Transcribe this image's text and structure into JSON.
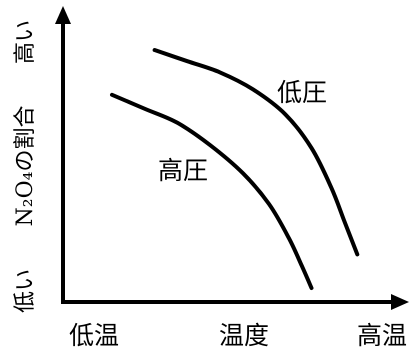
{
  "chart_data": {
    "type": "line",
    "title": "",
    "xlabel": "温度",
    "ylabel": "N₂O₄の割合",
    "x_low_label": "低温",
    "x_high_label": "高温",
    "y_low_label": "低い",
    "y_high_label": "高い",
    "grid": false,
    "legend": "none",
    "qualitative": true,
    "series": [
      {
        "name": "低圧",
        "x": [
          0.28,
          0.38,
          0.48,
          0.58,
          0.68,
          0.76,
          0.82,
          0.86,
          0.9
        ],
        "y": [
          0.9,
          0.86,
          0.82,
          0.76,
          0.67,
          0.55,
          0.41,
          0.29,
          0.17
        ]
      },
      {
        "name": "高圧",
        "x": [
          0.15,
          0.25,
          0.35,
          0.45,
          0.55,
          0.63,
          0.69,
          0.73,
          0.76
        ],
        "y": [
          0.74,
          0.69,
          0.64,
          0.56,
          0.46,
          0.35,
          0.23,
          0.13,
          0.05
        ]
      }
    ]
  }
}
